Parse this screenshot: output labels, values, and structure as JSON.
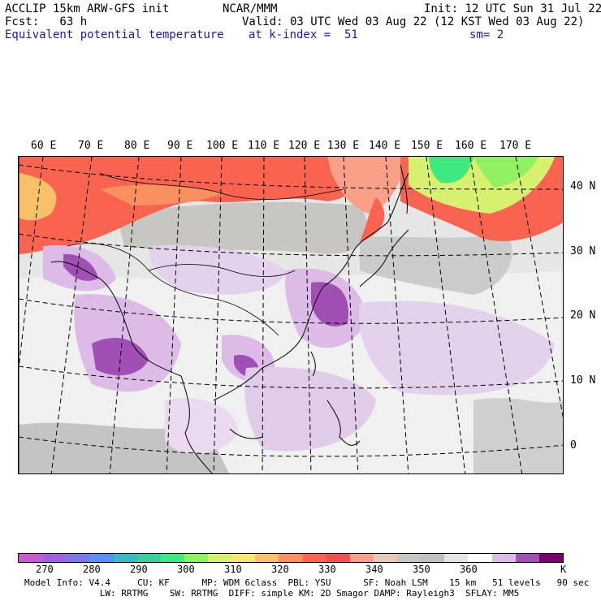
{
  "header": {
    "model": "ACCLIP 15km ARW-GFS init",
    "center": "NCAR/MMM",
    "init": "Init: 12 UTC Sun 31 Jul 22",
    "fcst": "Fcst:   63 h",
    "valid": "Valid: 03 UTC Wed 03 Aug 22 (12 KST Wed 03 Aug 22)",
    "field": "Equivalent potential temperature",
    "level": "at k-index =  51",
    "smooth": "sm= 2"
  },
  "map": {
    "lon_labels": [
      "60 E",
      "70 E",
      "80 E",
      "90 E",
      "100 E",
      "110 E",
      "120 E",
      "130 E",
      "140 E",
      "150 E",
      "160 E",
      "170 E"
    ],
    "lat_labels": [
      "40 N",
      "30 N",
      "20 N",
      "10 N",
      "0"
    ]
  },
  "colorbar": {
    "colors": [
      "#c85ad2",
      "#a060e0",
      "#7c78e6",
      "#5a8ef0",
      "#3ab8c8",
      "#38d0a0",
      "#40e880",
      "#90f060",
      "#d8f070",
      "#f8e870",
      "#f8c068",
      "#f89060",
      "#f86450",
      "#f05050",
      "#f8a088",
      "#e8c8b8",
      "#c8c4c0",
      "#c0c0c0",
      "#e4e4e4",
      "#ffffff",
      "#dcbce6",
      "#a050b4",
      "#7a0070"
    ],
    "ticks": [
      "270",
      "280",
      "290",
      "300",
      "310",
      "320",
      "330",
      "340",
      "350",
      "360"
    ],
    "unit": "K"
  },
  "footer": {
    "line1": "Model Info: V4.4     CU: KF      MP: WDM 6class  PBL: YSU      SF: Noah LSM    15 km   51 levels   90 sec",
    "line2": "              LW: RRTMG    SW: RRTMG  DIFF: simple KM: 2D Smagor DAMP: Rayleigh3  SFLAY: MM5"
  }
}
